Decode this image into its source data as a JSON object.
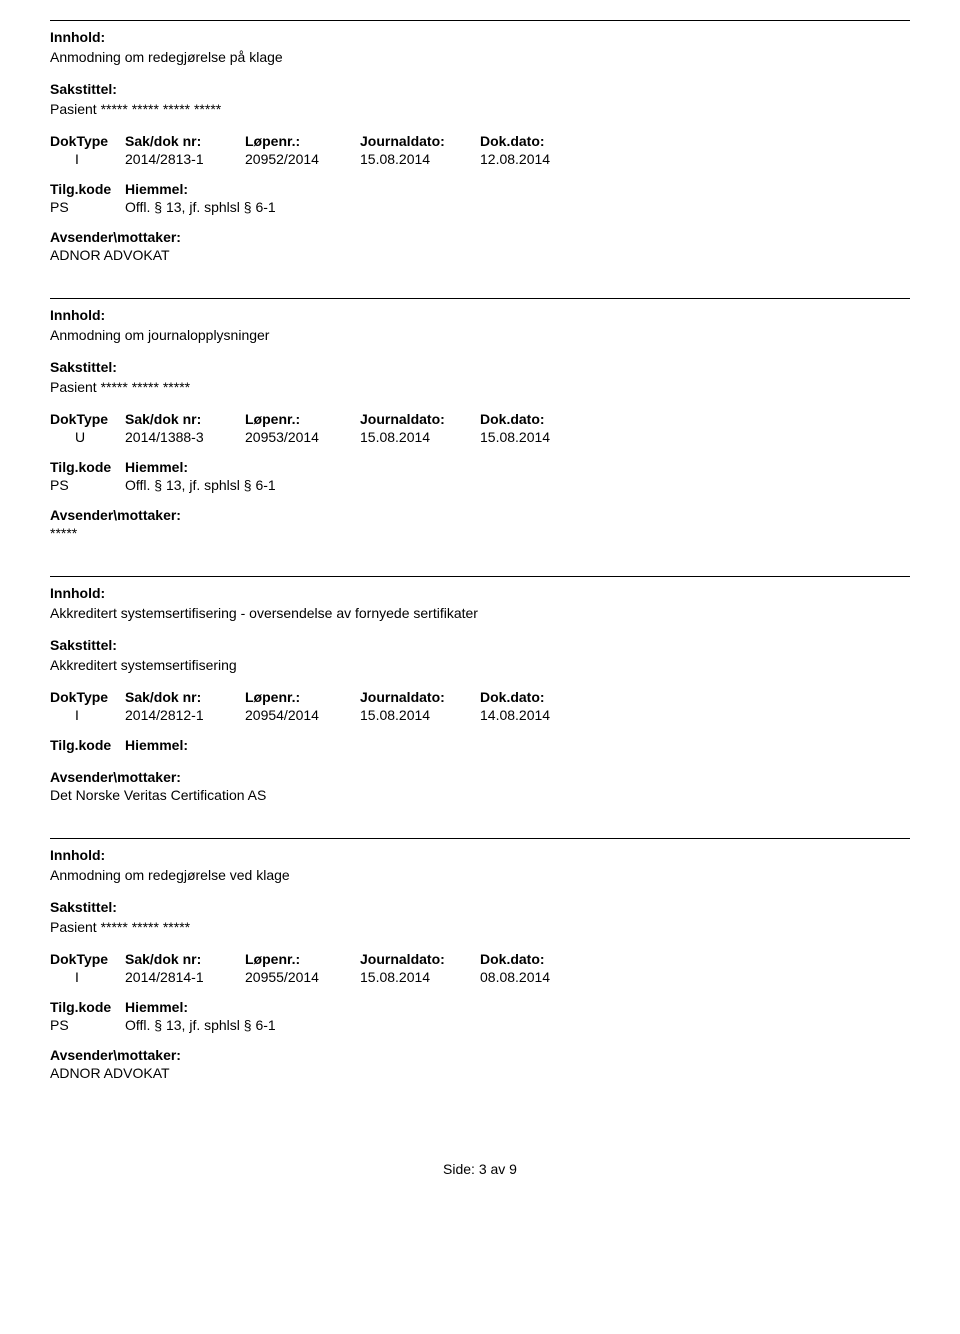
{
  "labels": {
    "innhold": "Innhold:",
    "sakstittel": "Sakstittel:",
    "doktype": "DokType",
    "sakdok": "Sak/dok nr:",
    "lopenr": "Løpenr.:",
    "journaldato": "Journaldato:",
    "dokdato": "Dok.dato:",
    "tilgkode": "Tilg.kode",
    "hiemmel": "Hiemmel:",
    "avsender": "Avsender\\mottaker:"
  },
  "records": [
    {
      "innhold": "Anmodning om redegjørelse på klage",
      "sakstittel": "Pasient ***** ***** ***** *****",
      "doktype": "I",
      "sakdok": "2014/2813-1",
      "lopenr": "20952/2014",
      "journaldato": "15.08.2014",
      "dokdato": "12.08.2014",
      "tilgkode": "PS",
      "hiemmel": "Offl. § 13, jf. sphlsl § 6-1",
      "avsender": "ADNOR ADVOKAT"
    },
    {
      "innhold": "Anmodning om journalopplysninger",
      "sakstittel": "Pasient ***** ***** *****",
      "doktype": "U",
      "sakdok": "2014/1388-3",
      "lopenr": "20953/2014",
      "journaldato": "15.08.2014",
      "dokdato": "15.08.2014",
      "tilgkode": "PS",
      "hiemmel": "Offl. § 13, jf. sphlsl § 6-1",
      "avsender": "*****"
    },
    {
      "innhold": "Akkreditert systemsertifisering - oversendelse av fornyede sertifikater",
      "sakstittel": "Akkreditert systemsertifisering",
      "doktype": "I",
      "sakdok": "2014/2812-1",
      "lopenr": "20954/2014",
      "journaldato": "15.08.2014",
      "dokdato": "14.08.2014",
      "tilgkode": "",
      "hiemmel": "",
      "avsender": "Det Norske Veritas Certification AS"
    },
    {
      "innhold": "Anmodning om redegjørelse ved klage",
      "sakstittel": "Pasient ***** ***** *****",
      "doktype": "I",
      "sakdok": "2014/2814-1",
      "lopenr": "20955/2014",
      "journaldato": "15.08.2014",
      "dokdato": "08.08.2014",
      "tilgkode": "PS",
      "hiemmel": "Offl. § 13, jf. sphlsl § 6-1",
      "avsender": "ADNOR ADVOKAT"
    }
  ],
  "footer": "Side: 3 av 9"
}
